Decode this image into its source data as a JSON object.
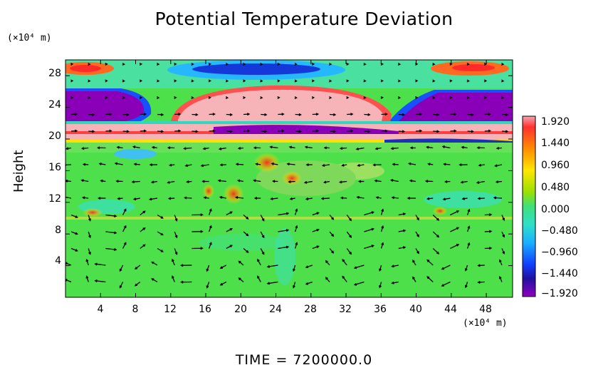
{
  "chart_data": {
    "type": "heatmap",
    "title": "Potential Temperature Deviation",
    "ylabel": "Height",
    "y_unit_label": "(×10⁴ m)",
    "x_unit_label": "(×10⁴ m)",
    "x_ticks": [
      "4",
      "8",
      "12",
      "16",
      "20",
      "24",
      "28",
      "32",
      "36",
      "40",
      "44",
      "48"
    ],
    "y_ticks": [
      "4",
      "8",
      "12",
      "16",
      "20",
      "24",
      "28"
    ],
    "xlim": [
      0,
      51
    ],
    "ylim": [
      0,
      30
    ],
    "colorbar": {
      "ticks": [
        "1.920",
        "1.440",
        "0.960",
        "0.480",
        "0.000",
        "−0.480",
        "−0.960",
        "−1.440",
        "−1.920"
      ],
      "range": [
        -1.92,
        1.92
      ]
    },
    "footer": "TIME = 7200000.0",
    "overlay": "velocity vectors"
  }
}
